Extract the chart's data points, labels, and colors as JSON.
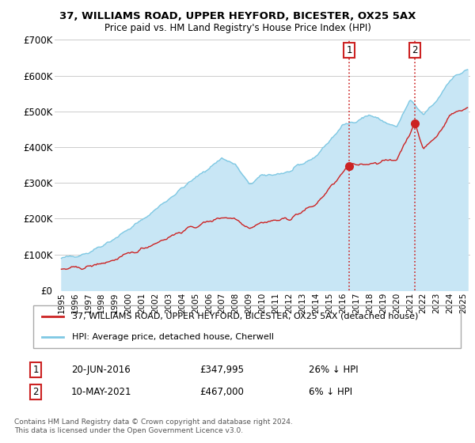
{
  "title": "37, WILLIAMS ROAD, UPPER HEYFORD, BICESTER, OX25 5AX",
  "subtitle": "Price paid vs. HM Land Registry's House Price Index (HPI)",
  "legend_house": "37, WILLIAMS ROAD, UPPER HEYFORD, BICESTER, OX25 5AX (detached house)",
  "legend_hpi": "HPI: Average price, detached house, Cherwell",
  "annotation1_date": "20-JUN-2016",
  "annotation1_price": "£347,995",
  "annotation1_hpi": "26% ↓ HPI",
  "annotation2_date": "10-MAY-2021",
  "annotation2_price": "£467,000",
  "annotation2_hpi": "6% ↓ HPI",
  "footnote": "Contains HM Land Registry data © Crown copyright and database right 2024.\nThis data is licensed under the Open Government Licence v3.0.",
  "hpi_color": "#7ec8e3",
  "hpi_fill_color": "#c8e6f5",
  "house_color": "#cc2222",
  "vline_color": "#cc2222",
  "annotation_box_color": "#cc2222",
  "ylim": [
    0,
    700000
  ],
  "yticks": [
    0,
    100000,
    200000,
    300000,
    400000,
    500000,
    600000,
    700000
  ],
  "ytick_labels": [
    "£0",
    "£100K",
    "£200K",
    "£300K",
    "£400K",
    "£500K",
    "£600K",
    "£700K"
  ],
  "sale1_year": 2016.47,
  "sale1_price": 347995,
  "sale2_year": 2021.36,
  "sale2_price": 467000,
  "bg_color": "#ffffff",
  "grid_color": "#cccccc",
  "hpi_key_years": [
    1995,
    1997,
    1999,
    2001,
    2004,
    2007,
    2008,
    2009,
    2010,
    2012,
    2014,
    2016,
    2018,
    2020,
    2021,
    2022,
    2023,
    2024,
    2025.2
  ],
  "hpi_key_vals": [
    88000,
    105000,
    145000,
    195000,
    285000,
    370000,
    350000,
    295000,
    320000,
    330000,
    375000,
    460000,
    490000,
    455000,
    530000,
    490000,
    530000,
    590000,
    615000
  ],
  "house_key_years": [
    1995,
    1997,
    1999,
    2001,
    2004,
    2007,
    2008,
    2009,
    2010,
    2012,
    2014,
    2016.47,
    2018,
    2020,
    2021.36,
    2022,
    2023,
    2024,
    2025.2
  ],
  "house_key_vals": [
    58000,
    65000,
    85000,
    115000,
    165000,
    205000,
    200000,
    175000,
    190000,
    200000,
    240000,
    347995,
    355000,
    365000,
    467000,
    395000,
    430000,
    490000,
    510000
  ]
}
